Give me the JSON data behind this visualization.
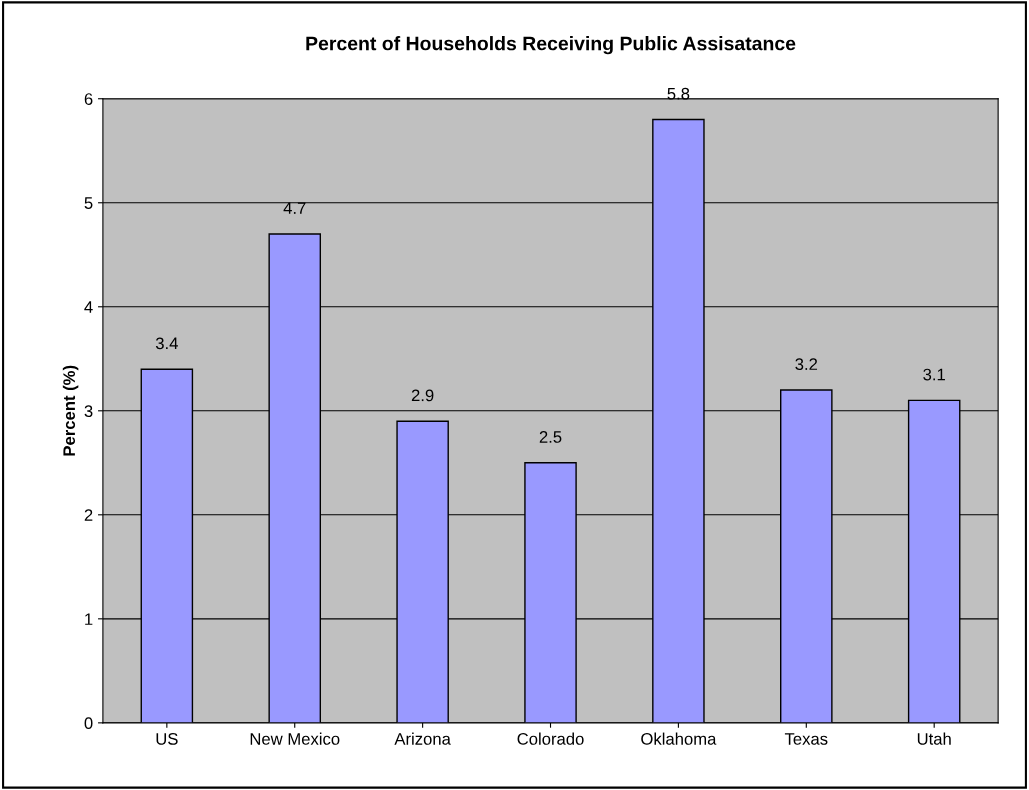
{
  "chart_data": {
    "type": "bar",
    "title": "Percent of Households Receiving Public Assisatance",
    "ylabel": "Percent (%)",
    "categories": [
      "US",
      "New Mexico",
      "Arizona",
      "Colorado",
      "Oklahoma",
      "Texas",
      "Utah"
    ],
    "values": [
      3.4,
      4.7,
      2.9,
      2.5,
      5.8,
      3.2,
      3.1
    ],
    "color": "#9999ff",
    "ylim": [
      0,
      6
    ],
    "yticks": [
      0,
      1,
      2,
      3,
      4,
      5,
      6
    ],
    "grid": "y",
    "data_labels": true
  }
}
